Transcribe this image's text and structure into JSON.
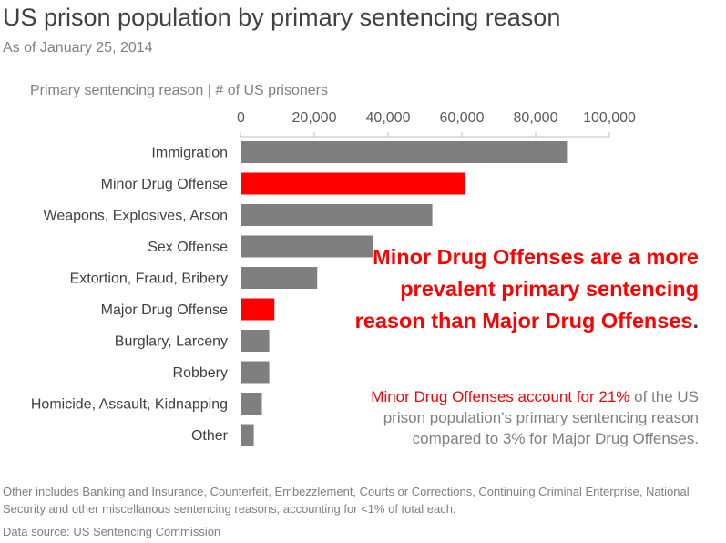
{
  "title": "US prison population by primary sentencing reason",
  "subtitle": "As of January 25, 2014",
  "axis_caption": "Primary sentencing reason | # of US prisoners",
  "annotation": {
    "headline": "Minor Drug Offenses are a more prevalent primary sentencing reason than Major Drug Offenses",
    "headline_end": ".",
    "body_highlight": "Minor Drug Offenses account for 21%",
    "body_rest": "of the US prison population's primary sentencing reason compared to 3% for Major Drug Offenses."
  },
  "footnote": "Other includes Banking and Insurance, Counterfeit, Embezzlement, Courts or Corrections, Continuing Criminal Enterprise, National Security and other miscellanous sentencing reasons, accounting for <1% of total each.",
  "source": "Data source: US Sentencing Commission",
  "colors": {
    "highlight": "#ff0000",
    "default": "#7f7f7f",
    "axis": "#bfbfbf"
  },
  "chart_data": {
    "type": "bar",
    "orientation": "horizontal",
    "categories": [
      "Immigration",
      "Minor Drug Offense",
      "Weapons, Explosives, Arson",
      "Sex Offense",
      "Extortion, Fraud, Bribery",
      "Major Drug Offense",
      "Burglary, Larceny",
      "Robbery",
      "Homicide, Assault, Kidnapping",
      "Other"
    ],
    "values": [
      88500,
      61000,
      52000,
      35800,
      20800,
      9200,
      7800,
      7800,
      5800,
      3600
    ],
    "highlight": [
      false,
      true,
      false,
      false,
      false,
      true,
      false,
      false,
      false,
      false
    ],
    "xlim": [
      0,
      100000
    ],
    "xticks": [
      0,
      20000,
      40000,
      60000,
      80000,
      100000
    ],
    "xtick_labels": [
      "0",
      "20,000",
      "40,000",
      "60,000",
      "80,000",
      "100,000"
    ],
    "grid": false
  }
}
